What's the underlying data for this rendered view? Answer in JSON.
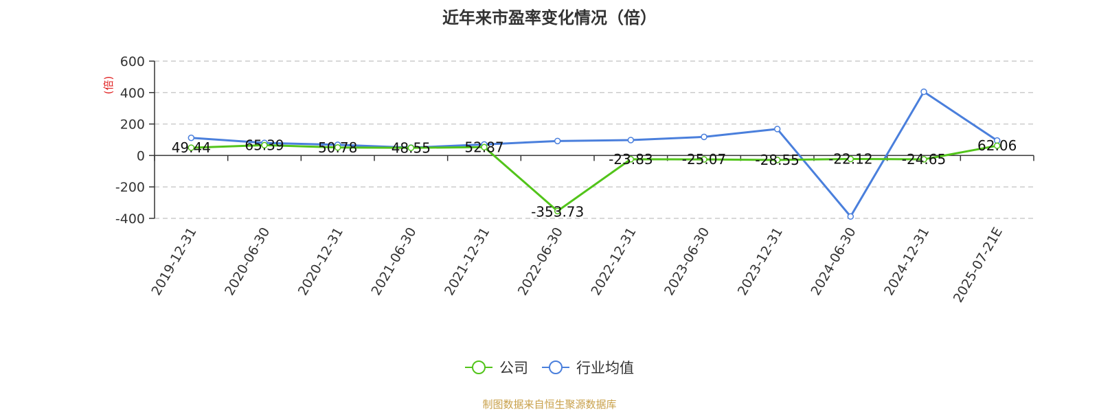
{
  "chart_data": {
    "type": "line",
    "title": "近年来市盈率变化情况（倍）",
    "ylabel": "(倍)",
    "categories": [
      "2019-12-31",
      "2020-06-30",
      "2020-12-31",
      "2021-06-30",
      "2021-12-31",
      "2022-06-30",
      "2022-12-31",
      "2023-06-30",
      "2023-12-31",
      "2024-06-30",
      "2024-12-31",
      "2025-07-21E"
    ],
    "ylim": [
      -400,
      600
    ],
    "yticks": [
      "600",
      "400",
      "200",
      "0",
      "-200",
      "-400"
    ],
    "grid": true,
    "legend_position": "bottom",
    "series": [
      {
        "name": "公司",
        "color": "#52c41a",
        "values": [
          49.44,
          65.39,
          50.78,
          48.55,
          52.87,
          -353.73,
          -23.83,
          -25.07,
          -28.55,
          -22.12,
          -24.65,
          62.06
        ],
        "labels": [
          "49.44",
          "65.39",
          "50.78",
          "48.55",
          "52.87",
          "-353.73",
          "-23.83",
          "-25.07",
          "-28.55",
          "-22.12",
          "-24.65",
          "62.06"
        ]
      },
      {
        "name": "行业均值",
        "color": "#4a7fdc",
        "values": [
          112,
          80,
          68,
          50,
          70,
          92,
          98,
          118,
          168,
          -388,
          405,
          95
        ]
      }
    ]
  },
  "source": {
    "text": "制图数据来自恒生聚源数据库",
    "color": "#c8a04a"
  },
  "ylabel_color": "#e02020"
}
